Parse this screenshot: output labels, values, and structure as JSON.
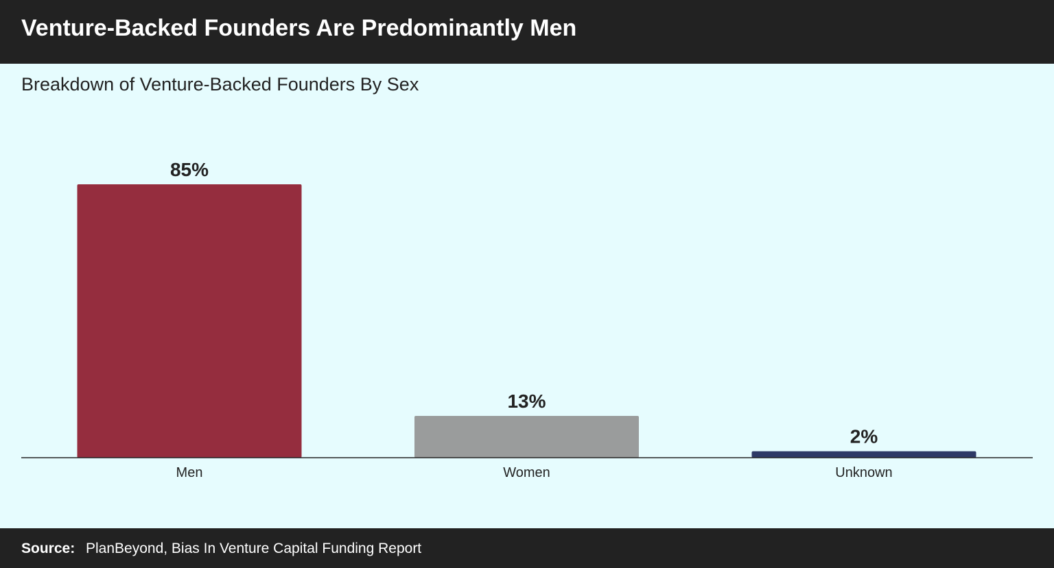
{
  "header": {
    "title": "Venture-Backed Founders Are Predominantly Men"
  },
  "subtitle": "Breakdown of Venture-Backed Founders By Sex",
  "chart_data": {
    "type": "bar",
    "categories": [
      "Men",
      "Women",
      "Unknown"
    ],
    "values": [
      85,
      13,
      2
    ],
    "data_labels": [
      "85%",
      "13%",
      "2%"
    ],
    "colors": [
      "#952d3e",
      "#9a9c9c",
      "#2e3966"
    ],
    "ylim": [
      0,
      85
    ],
    "xlabel": "",
    "ylabel": "",
    "grid": false,
    "legend": "none"
  },
  "footer": {
    "source_label": "Source:",
    "source_text": "PlanBeyond, Bias In Venture Capital Funding Report"
  }
}
